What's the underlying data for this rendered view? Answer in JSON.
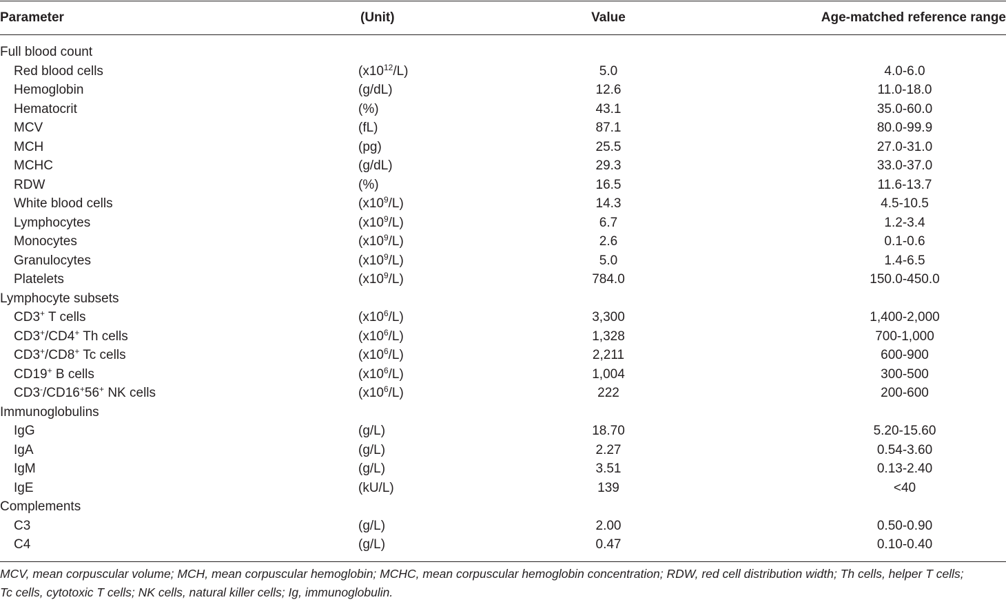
{
  "header": {
    "parameter": "Parameter",
    "unit": "(Unit)",
    "value": "Value",
    "reference": "Age-matched reference range"
  },
  "rows": [
    {
      "type": "group",
      "label": "Full blood count"
    },
    {
      "type": "row",
      "param": [
        "Red blood cells"
      ],
      "unit": [
        "(x10",
        "12",
        "/L)"
      ],
      "value": "5.0",
      "ref": "4.0-6.0"
    },
    {
      "type": "row",
      "param": [
        "Hemoglobin"
      ],
      "unit": [
        "(g/dL)"
      ],
      "value": "12.6",
      "ref": "11.0-18.0"
    },
    {
      "type": "row",
      "param": [
        "Hematocrit"
      ],
      "unit": [
        "(%)"
      ],
      "value": "43.1",
      "ref": "35.0-60.0"
    },
    {
      "type": "row",
      "param": [
        "MCV"
      ],
      "unit": [
        "(fL)"
      ],
      "value": "87.1",
      "ref": "80.0-99.9"
    },
    {
      "type": "row",
      "param": [
        "MCH"
      ],
      "unit": [
        "(pg)"
      ],
      "value": "25.5",
      "ref": "27.0-31.0"
    },
    {
      "type": "row",
      "param": [
        "MCHC"
      ],
      "unit": [
        "(g/dL)"
      ],
      "value": "29.3",
      "ref": "33.0-37.0"
    },
    {
      "type": "row",
      "param": [
        "RDW"
      ],
      "unit": [
        "(%)"
      ],
      "value": "16.5",
      "ref": "11.6-13.7"
    },
    {
      "type": "row",
      "param": [
        "White blood cells"
      ],
      "unit": [
        "(x10",
        "9",
        "/L)"
      ],
      "value": "14.3",
      "ref": "4.5-10.5"
    },
    {
      "type": "row",
      "param": [
        "Lymphocytes"
      ],
      "unit": [
        "(x10",
        "9",
        "/L)"
      ],
      "value": "6.7",
      "ref": "1.2-3.4"
    },
    {
      "type": "row",
      "param": [
        "Monocytes"
      ],
      "unit": [
        "(x10",
        "9",
        "/L)"
      ],
      "value": "2.6",
      "ref": "0.1-0.6"
    },
    {
      "type": "row",
      "param": [
        "Granulocytes"
      ],
      "unit": [
        "(x10",
        "9",
        "/L)"
      ],
      "value": "5.0",
      "ref": "1.4-6.5"
    },
    {
      "type": "row",
      "param": [
        "Platelets"
      ],
      "unit": [
        "(x10",
        "9",
        "/L)"
      ],
      "value": "784.0",
      "ref": "150.0-450.0"
    },
    {
      "type": "group",
      "label": "Lymphocyte subsets"
    },
    {
      "type": "row",
      "param": [
        "CD3",
        "+",
        " T cells"
      ],
      "unit": [
        "(x10",
        "6",
        "/L)"
      ],
      "value": "3,300",
      "ref": "1,400-2,000"
    },
    {
      "type": "row",
      "param": [
        "CD3",
        "+",
        "/CD4",
        "+",
        " Th cells"
      ],
      "unit": [
        "(x10",
        "6",
        "/L)"
      ],
      "value": "1,328",
      "ref": "700-1,000"
    },
    {
      "type": "row",
      "param": [
        "CD3",
        "+",
        "/CD8",
        "+",
        " Tc cells"
      ],
      "unit": [
        "(x10",
        "6",
        "/L)"
      ],
      "value": "2,211",
      "ref": "600-900"
    },
    {
      "type": "row",
      "param": [
        "CD19",
        "+",
        " B cells"
      ],
      "unit": [
        "(x10",
        "6",
        "/L)"
      ],
      "value": "1,004",
      "ref": "300-500"
    },
    {
      "type": "row",
      "param": [
        "CD3",
        "-",
        "/CD16",
        "+",
        "56",
        "+",
        " NK cells"
      ],
      "unit": [
        "(x10",
        "6",
        "/L)"
      ],
      "value": "222",
      "ref": "200-600"
    },
    {
      "type": "group",
      "label": "Immunoglobulins"
    },
    {
      "type": "row",
      "param": [
        "IgG"
      ],
      "unit": [
        "(g/L)"
      ],
      "value": "18.70",
      "ref": "5.20-15.60"
    },
    {
      "type": "row",
      "param": [
        "IgA"
      ],
      "unit": [
        "(g/L)"
      ],
      "value": "2.27",
      "ref": "0.54-3.60"
    },
    {
      "type": "row",
      "param": [
        "IgM"
      ],
      "unit": [
        "(g/L)"
      ],
      "value": "3.51",
      "ref": "0.13-2.40"
    },
    {
      "type": "row",
      "param": [
        "IgE"
      ],
      "unit": [
        "(kU/L)"
      ],
      "value": "139",
      "ref": "<40"
    },
    {
      "type": "group",
      "label": "Complements"
    },
    {
      "type": "row",
      "param": [
        "C3"
      ],
      "unit": [
        "(g/L)"
      ],
      "value": "2.00",
      "ref": "0.50-0.90"
    },
    {
      "type": "row",
      "param": [
        "C4"
      ],
      "unit": [
        "(g/L)"
      ],
      "value": "0.47",
      "ref": "0.10-0.40"
    }
  ],
  "footnote": [
    "MCV, mean corpuscular volume; MCH, mean corpuscular hemoglobin; MCHC, mean corpuscular hemoglobin concentration; RDW, red cell distribution width; Th cells, helper T cells;",
    "Tc cells, cytotoxic T cells; NK cells, natural killer cells; Ig, immunoglobulin."
  ]
}
